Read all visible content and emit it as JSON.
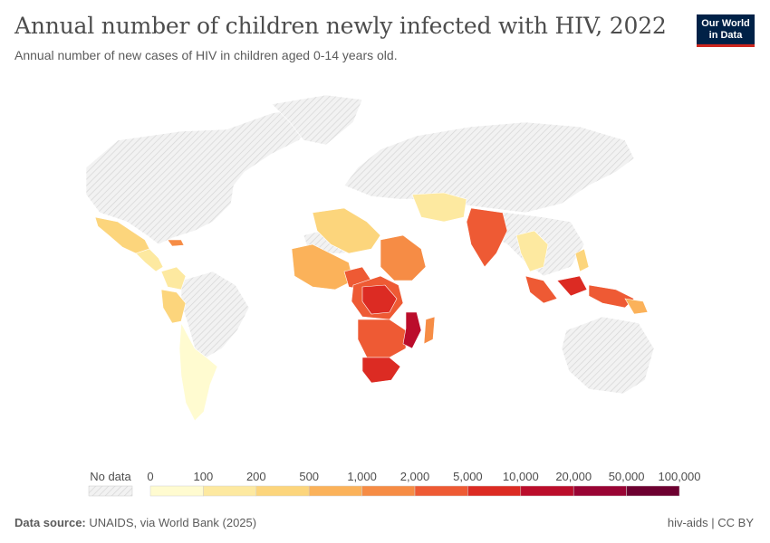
{
  "header": {
    "title": "Annual number of children newly infected with HIV, 2022",
    "subtitle": "Annual number of new cases of HIV in children aged 0-14 years old.",
    "logo_line1": "Our World",
    "logo_line2": "in Data"
  },
  "legend": {
    "no_data_label": "No data",
    "bins": [
      {
        "label": "0",
        "color": "#fffbd0"
      },
      {
        "label": "100",
        "color": "#fde9a0"
      },
      {
        "label": "200",
        "color": "#fcd57c"
      },
      {
        "label": "500",
        "color": "#fbb25a"
      },
      {
        "label": "1,000",
        "color": "#f68c45"
      },
      {
        "label": "2,000",
        "color": "#ee5a34"
      },
      {
        "label": "5,000",
        "color": "#dc2b23"
      },
      {
        "label": "10,000",
        "color": "#bb0d2b"
      },
      {
        "label": "20,000",
        "color": "#990434"
      },
      {
        "label": "50,000",
        "color": "#6d0030"
      },
      {
        "label": "100,000",
        "color": ""
      }
    ]
  },
  "colors": {
    "no_data_fill": "#eeeeee",
    "border": "#ffffff",
    "hatch": "#d6d6d6"
  },
  "footer": {
    "source_label": "Data source:",
    "source": "UNAIDS, via World Bank (2025)",
    "slug": "hiv-aids | CC BY"
  }
}
